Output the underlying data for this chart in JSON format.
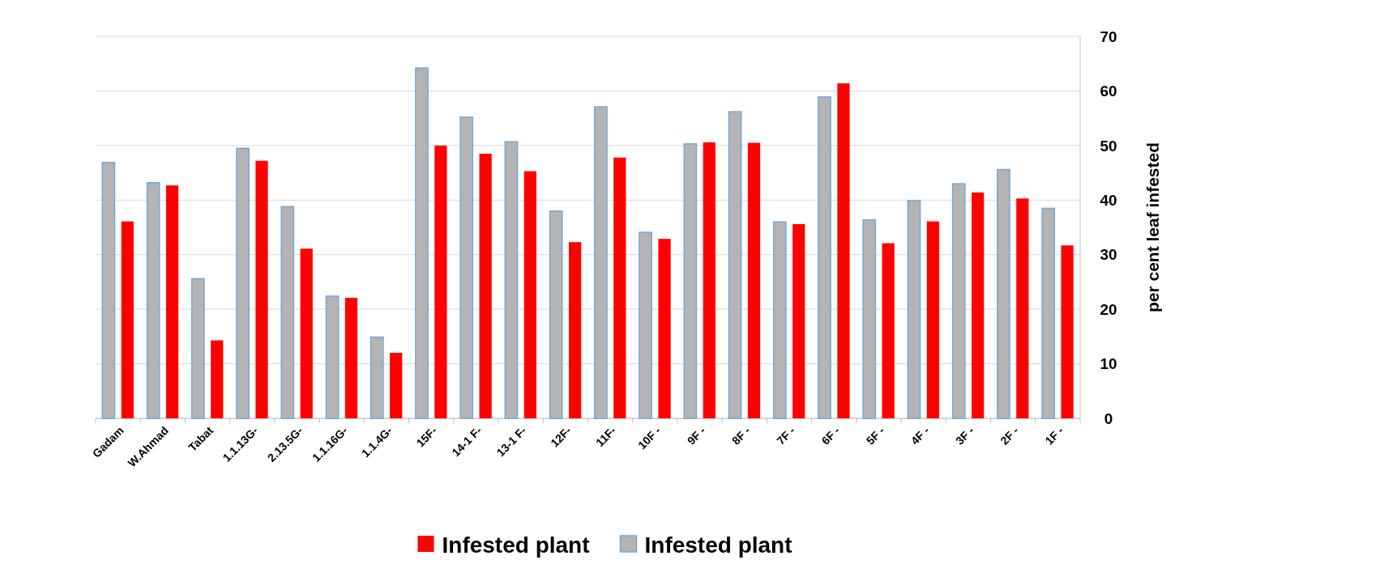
{
  "chart_data": {
    "type": "bar",
    "ylabel": "per cent leaf infested",
    "categories": [
      "Gadam",
      "W.Ahmad",
      "Tabat",
      "1.1.13G-",
      "2.13.5G-",
      "1.1.16G-",
      "1.1.4G-",
      "15F-",
      "14-1 F-",
      "13-1 F-",
      "12F-",
      "11F-",
      "10F -",
      "9F -",
      "8F -",
      "7F -",
      "6F -",
      "5F -",
      "4F -",
      "3F -",
      "2F -",
      "1F -"
    ],
    "series": [
      {
        "name": "Infested plant",
        "color": "#b4b4b4",
        "values": [
          46.9,
          43.2,
          25.6,
          49.5,
          38.8,
          22.4,
          14.9,
          64.2,
          55.2,
          50.7,
          38.0,
          57.1,
          34.1,
          50.3,
          56.2,
          36.0,
          58.9,
          36.4,
          39.9,
          43.0,
          45.6,
          38.5
        ]
      },
      {
        "name": "Infested plant",
        "color": "#ff0000",
        "values": [
          36.1,
          42.7,
          14.3,
          47.2,
          31.1,
          22.1,
          12.0,
          50.0,
          48.5,
          45.3,
          32.3,
          47.8,
          32.9,
          50.6,
          50.5,
          35.6,
          61.4,
          32.1,
          36.1,
          41.4,
          40.3,
          31.7
        ]
      }
    ],
    "ylim": [
      0,
      70
    ],
    "yticks": [
      0,
      10,
      20,
      30,
      40,
      50,
      60,
      70
    ],
    "grid": "y",
    "legend": "bottom"
  }
}
